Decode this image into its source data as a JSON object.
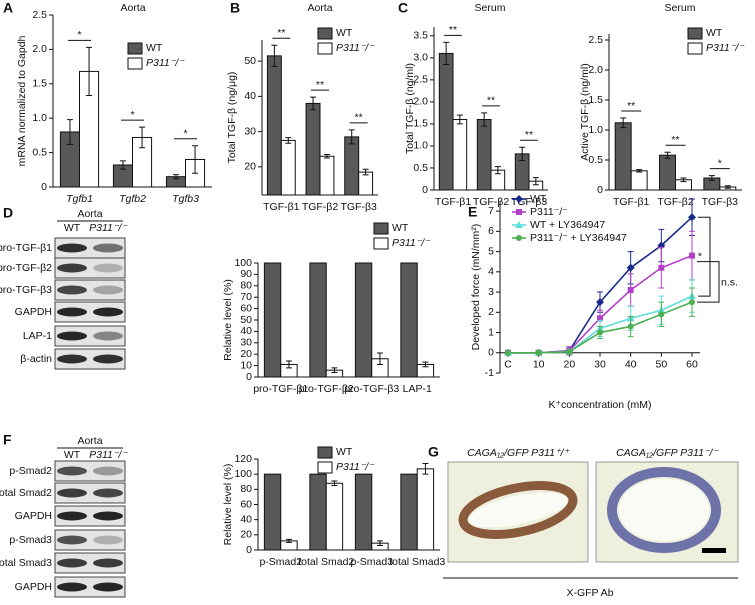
{
  "chart_data": [
    {
      "type": "bar",
      "panel": "A",
      "title": "Aorta",
      "ylabel": "mRNA normalized to Gapdh",
      "categories": [
        "Tgfb1",
        "Tgfb2",
        "Tgfb3"
      ],
      "category_style": "italic",
      "series": [
        {
          "name": "WT",
          "color": "#595959",
          "values": [
            0.8,
            0.32,
            0.15
          ],
          "errors": [
            0.18,
            0.06,
            0.03
          ]
        },
        {
          "name": "P311⁻/⁻",
          "color": "#ffffff",
          "values": [
            1.68,
            0.72,
            0.4
          ],
          "errors": [
            0.35,
            0.15,
            0.2
          ]
        }
      ],
      "significance": [
        "*",
        "*",
        "*"
      ],
      "ylim": [
        0,
        2.5
      ],
      "yticks": [
        0,
        0.5,
        {
          "value": 1,
          "label": "1.0"
        },
        1.5,
        {
          "value": 2,
          "label": "2.0"
        },
        2.5
      ],
      "legend": true
    },
    {
      "type": "bar",
      "panel": "B",
      "title": "Aorta",
      "ylabel": "Total TGF-β (ng/μg)",
      "categories": [
        "TGF-β1",
        "TGF-β2",
        "TGF-β3"
      ],
      "series": [
        {
          "name": "WT",
          "color": "#595959",
          "values": [
            51.5,
            38,
            28.5
          ],
          "errors": [
            3,
            1.8,
            2
          ]
        },
        {
          "name": "P311⁻/⁻",
          "color": "#ffffff",
          "values": [
            27.5,
            23,
            18.5
          ],
          "errors": [
            0.8,
            0.5,
            0.8
          ]
        }
      ],
      "significance": [
        "**",
        "**",
        "**"
      ],
      "ylim": [
        12,
        56
      ],
      "yticks": [
        20,
        30,
        40,
        50
      ],
      "legend": true
    },
    {
      "type": "bar",
      "panel": "C",
      "title": "Serum",
      "ylabel": "Total TGF-β (ng/ml)",
      "categories": [
        "TGF-β1",
        "TGF-β2",
        "TGF-β3"
      ],
      "series": [
        {
          "name": "WT",
          "color": "#595959",
          "values": [
            3.1,
            1.6,
            0.82
          ],
          "errors": [
            0.25,
            0.15,
            0.15
          ]
        },
        {
          "name": "P311⁻/⁻",
          "color": "#ffffff",
          "values": [
            1.6,
            0.45,
            0.2
          ],
          "errors": [
            0.1,
            0.08,
            0.08
          ]
        }
      ],
      "significance": [
        "**",
        "**",
        "**"
      ],
      "ylim": [
        0,
        3.7
      ],
      "yticks": [
        0,
        0.5,
        {
          "value": 1,
          "label": "1.0"
        },
        1.5,
        {
          "value": 2,
          "label": "2.0"
        },
        2.5,
        {
          "value": 3,
          "label": "3.0"
        },
        3.5
      ],
      "legend": false
    },
    {
      "type": "bar",
      "title": "Serum",
      "ylabel": "Active TGF-β (ng/ml)",
      "categories": [
        "TGF-β1",
        "TGF-β2",
        "TGF-β3"
      ],
      "series": [
        {
          "name": "WT",
          "color": "#595959",
          "values": [
            1.12,
            0.58,
            0.2
          ],
          "errors": [
            0.08,
            0.05,
            0.04
          ]
        },
        {
          "name": "P311⁻/⁻",
          "color": "#ffffff",
          "values": [
            0.32,
            0.17,
            0.05
          ],
          "errors": [
            0.02,
            0.03,
            0.02
          ]
        }
      ],
      "significance": [
        "**",
        "**",
        "*"
      ],
      "ylim": [
        0,
        2.6
      ],
      "yticks": [
        0,
        0.5,
        {
          "value": 1,
          "label": "1.0"
        },
        1.5,
        {
          "value": 2,
          "label": "2.0"
        },
        2.5
      ],
      "legend": true
    },
    {
      "type": "bar",
      "ylabel": "Relative level (%)",
      "categories": [
        "pro-TGF-β1",
        "pro-TGF-β2",
        "pro-TGF-β3",
        "LAP-1"
      ],
      "series": [
        {
          "name": "WT",
          "color": "#595959",
          "values": [
            100,
            100,
            100,
            100
          ]
        },
        {
          "name": "P311⁻/⁻",
          "color": "#ffffff",
          "values": [
            11,
            6,
            16,
            11
          ],
          "errors": [
            3,
            2,
            5,
            2
          ]
        }
      ],
      "ylim": [
        0,
        100
      ],
      "yticks": [
        0,
        10,
        20,
        30,
        40,
        50,
        60,
        70,
        80,
        90,
        100
      ],
      "legend": true
    },
    {
      "type": "line",
      "panel": "E",
      "ylabel": "Developed force (mN/mm²)",
      "xlabel": "K⁺concentration (mM)",
      "categories": [
        "C",
        "10",
        "20",
        "30",
        "40",
        "50",
        "60"
      ],
      "series": [
        {
          "name": "WT",
          "color": "#1a2a8c",
          "marker": "diamond",
          "values": [
            0,
            0,
            0.1,
            2.5,
            4.2,
            5.3,
            6.7
          ],
          "errors": [
            0.05,
            0.1,
            0.2,
            0.5,
            0.8,
            0.8,
            0.9
          ]
        },
        {
          "name": "P311⁻/⁻",
          "color": "#b540c8",
          "marker": "square",
          "values": [
            0,
            0,
            0.1,
            1.7,
            3.1,
            4.2,
            4.8
          ],
          "errors": [
            0.05,
            0.1,
            0.2,
            0.4,
            0.8,
            1,
            1.2
          ]
        },
        {
          "name": "WT + LY364947",
          "color": "#5fdcdc",
          "marker": "triangle",
          "values": [
            0,
            0,
            0.05,
            1.2,
            1.7,
            2.1,
            2.8
          ],
          "errors": [
            0.05,
            0.1,
            0.1,
            0.4,
            0.6,
            0.7,
            0.8
          ]
        },
        {
          "name": "P311⁻/⁻ + LY364947",
          "color": "#4caf50",
          "marker": "circle",
          "values": [
            0,
            0,
            0.05,
            1,
            1.3,
            1.9,
            2.5
          ],
          "errors": [
            0.05,
            0.1,
            0.1,
            0.3,
            0.5,
            0.6,
            0.7
          ]
        }
      ],
      "annotations": [
        "*",
        "n.s."
      ],
      "ylim": [
        -1,
        7.5
      ],
      "yticks": [
        -1,
        0,
        1,
        2,
        3,
        4,
        5,
        6,
        7
      ],
      "legend": true
    },
    {
      "type": "bar",
      "ylabel": "Relative level (%)",
      "categories": [
        "p-Smad2",
        "total Smad2",
        "p-Smad3",
        "total Smad3"
      ],
      "series": [
        {
          "name": "WT",
          "color": "#595959",
          "values": [
            100,
            100,
            100,
            100
          ]
        },
        {
          "name": "P311⁻/⁻",
          "color": "#ffffff",
          "values": [
            12,
            88,
            9,
            107
          ],
          "errors": [
            2,
            3,
            3,
            7
          ]
        }
      ],
      "ylim": [
        0,
        120
      ],
      "yticks": [
        0,
        20,
        40,
        60,
        80,
        100,
        120
      ],
      "legend": true
    }
  ],
  "blots": [
    {
      "panel": "D",
      "title": "Aorta",
      "lanes": [
        "WT",
        "P311⁻/⁻"
      ],
      "rows": [
        "pro-TGF-β1",
        "pro-TGF-β2",
        "pro-TGF-β3",
        "GAPDH",
        "LAP-1",
        "β-actin"
      ]
    },
    {
      "panel": "F",
      "title": "Aorta",
      "lanes": [
        "WT",
        "P311⁻/⁻"
      ],
      "rows": [
        "p-Smad2",
        "total Smad2",
        "GAPDH",
        "p-Smad3",
        "total Smad3",
        "GAPDH"
      ]
    }
  ],
  "images": {
    "panel": "G",
    "labels": [
      "CAGA₁₂/GFP P311⁺/⁺",
      "CAGA₁₂/GFP P311⁻/⁻"
    ],
    "caption": "X-GFP Ab"
  }
}
